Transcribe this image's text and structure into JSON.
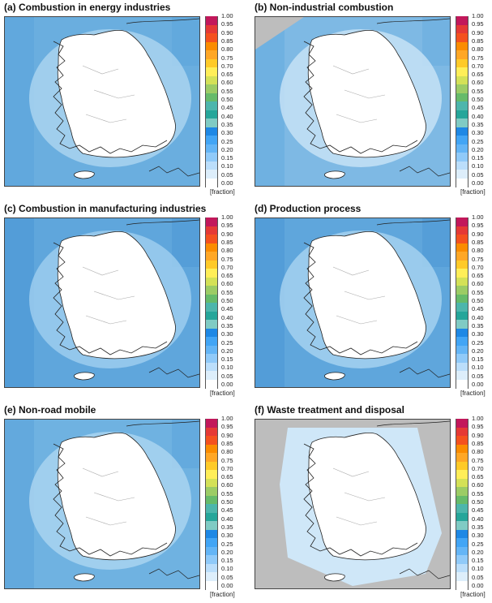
{
  "colorbar": {
    "ticks": [
      "1.00",
      "0.95",
      "0.90",
      "0.85",
      "0.80",
      "0.75",
      "0.70",
      "0.65",
      "0.60",
      "0.55",
      "0.50",
      "0.45",
      "0.40",
      "0.35",
      "0.30",
      "0.25",
      "0.20",
      "0.15",
      "0.10",
      "0.05",
      "0.00"
    ],
    "colors": [
      "#c2185b",
      "#e53935",
      "#f4511e",
      "#fb8c00",
      "#ffa726",
      "#ffca28",
      "#ffee58",
      "#d4e157",
      "#9ccc65",
      "#66bb6a",
      "#4db6ac",
      "#26a69a",
      "#80cbc4",
      "#1e88e5",
      "#42a5f5",
      "#64b5f6",
      "#90caf9",
      "#bbdefb",
      "#ddeefb",
      "#ffffff"
    ],
    "unit": "[fraction]"
  },
  "panels": [
    {
      "id": "a",
      "title": "(a) Combustion in energy industries",
      "sea": "#6aaedf",
      "outer": "#5ea5dc",
      "inner": "#a9d3f0",
      "land": "#ffffff",
      "nodata": ""
    },
    {
      "id": "b",
      "title": "(b) Non-industrial combustion",
      "sea": "#7eb9e4",
      "outer": "#6aaedf",
      "inner": "#c6e2f6",
      "land": "#ffffff",
      "nodata": "#bdbdbd"
    },
    {
      "id": "c",
      "title": "(c) Combustion in manufacturing industries",
      "sea": "#5fa6dc",
      "outer": "#4f9ad6",
      "inner": "#9ccdee",
      "land": "#ffffff",
      "nodata": ""
    },
    {
      "id": "d",
      "title": "(d) Production process",
      "sea": "#5fa6dc",
      "outer": "#4f9ad6",
      "inner": "#a4d1f0",
      "land": "#ffffff",
      "nodata": ""
    },
    {
      "id": "e",
      "title": "(e) Non-road mobile",
      "sea": "#6fb2e1",
      "outer": "#5ea5dc",
      "inner": "#a9d3f0",
      "land": "#ffffff",
      "nodata": ""
    },
    {
      "id": "f",
      "title": "(f) Waste treatment and disposal",
      "sea": "#bdbdbd",
      "outer": "#bdbdbd",
      "inner": "#cfe7f8",
      "land": "#ffffff",
      "nodata": "#bdbdbd"
    }
  ]
}
